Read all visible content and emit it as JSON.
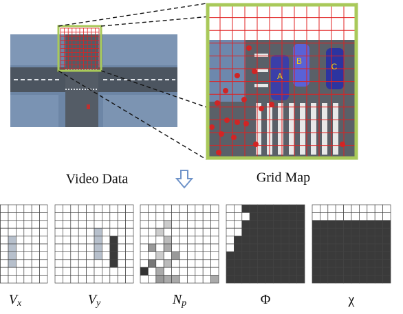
{
  "labels": {
    "video_data": "Video Data",
    "grid_map": "Grid Map"
  },
  "cars": [
    "A",
    "B",
    "C"
  ],
  "grids": [
    {
      "symbol": "V",
      "subscript": "x"
    },
    {
      "symbol": "V",
      "subscript": "y"
    },
    {
      "symbol": "N",
      "subscript": "p"
    },
    {
      "symbol": "Φ"
    },
    {
      "symbol": "χ"
    }
  ]
}
